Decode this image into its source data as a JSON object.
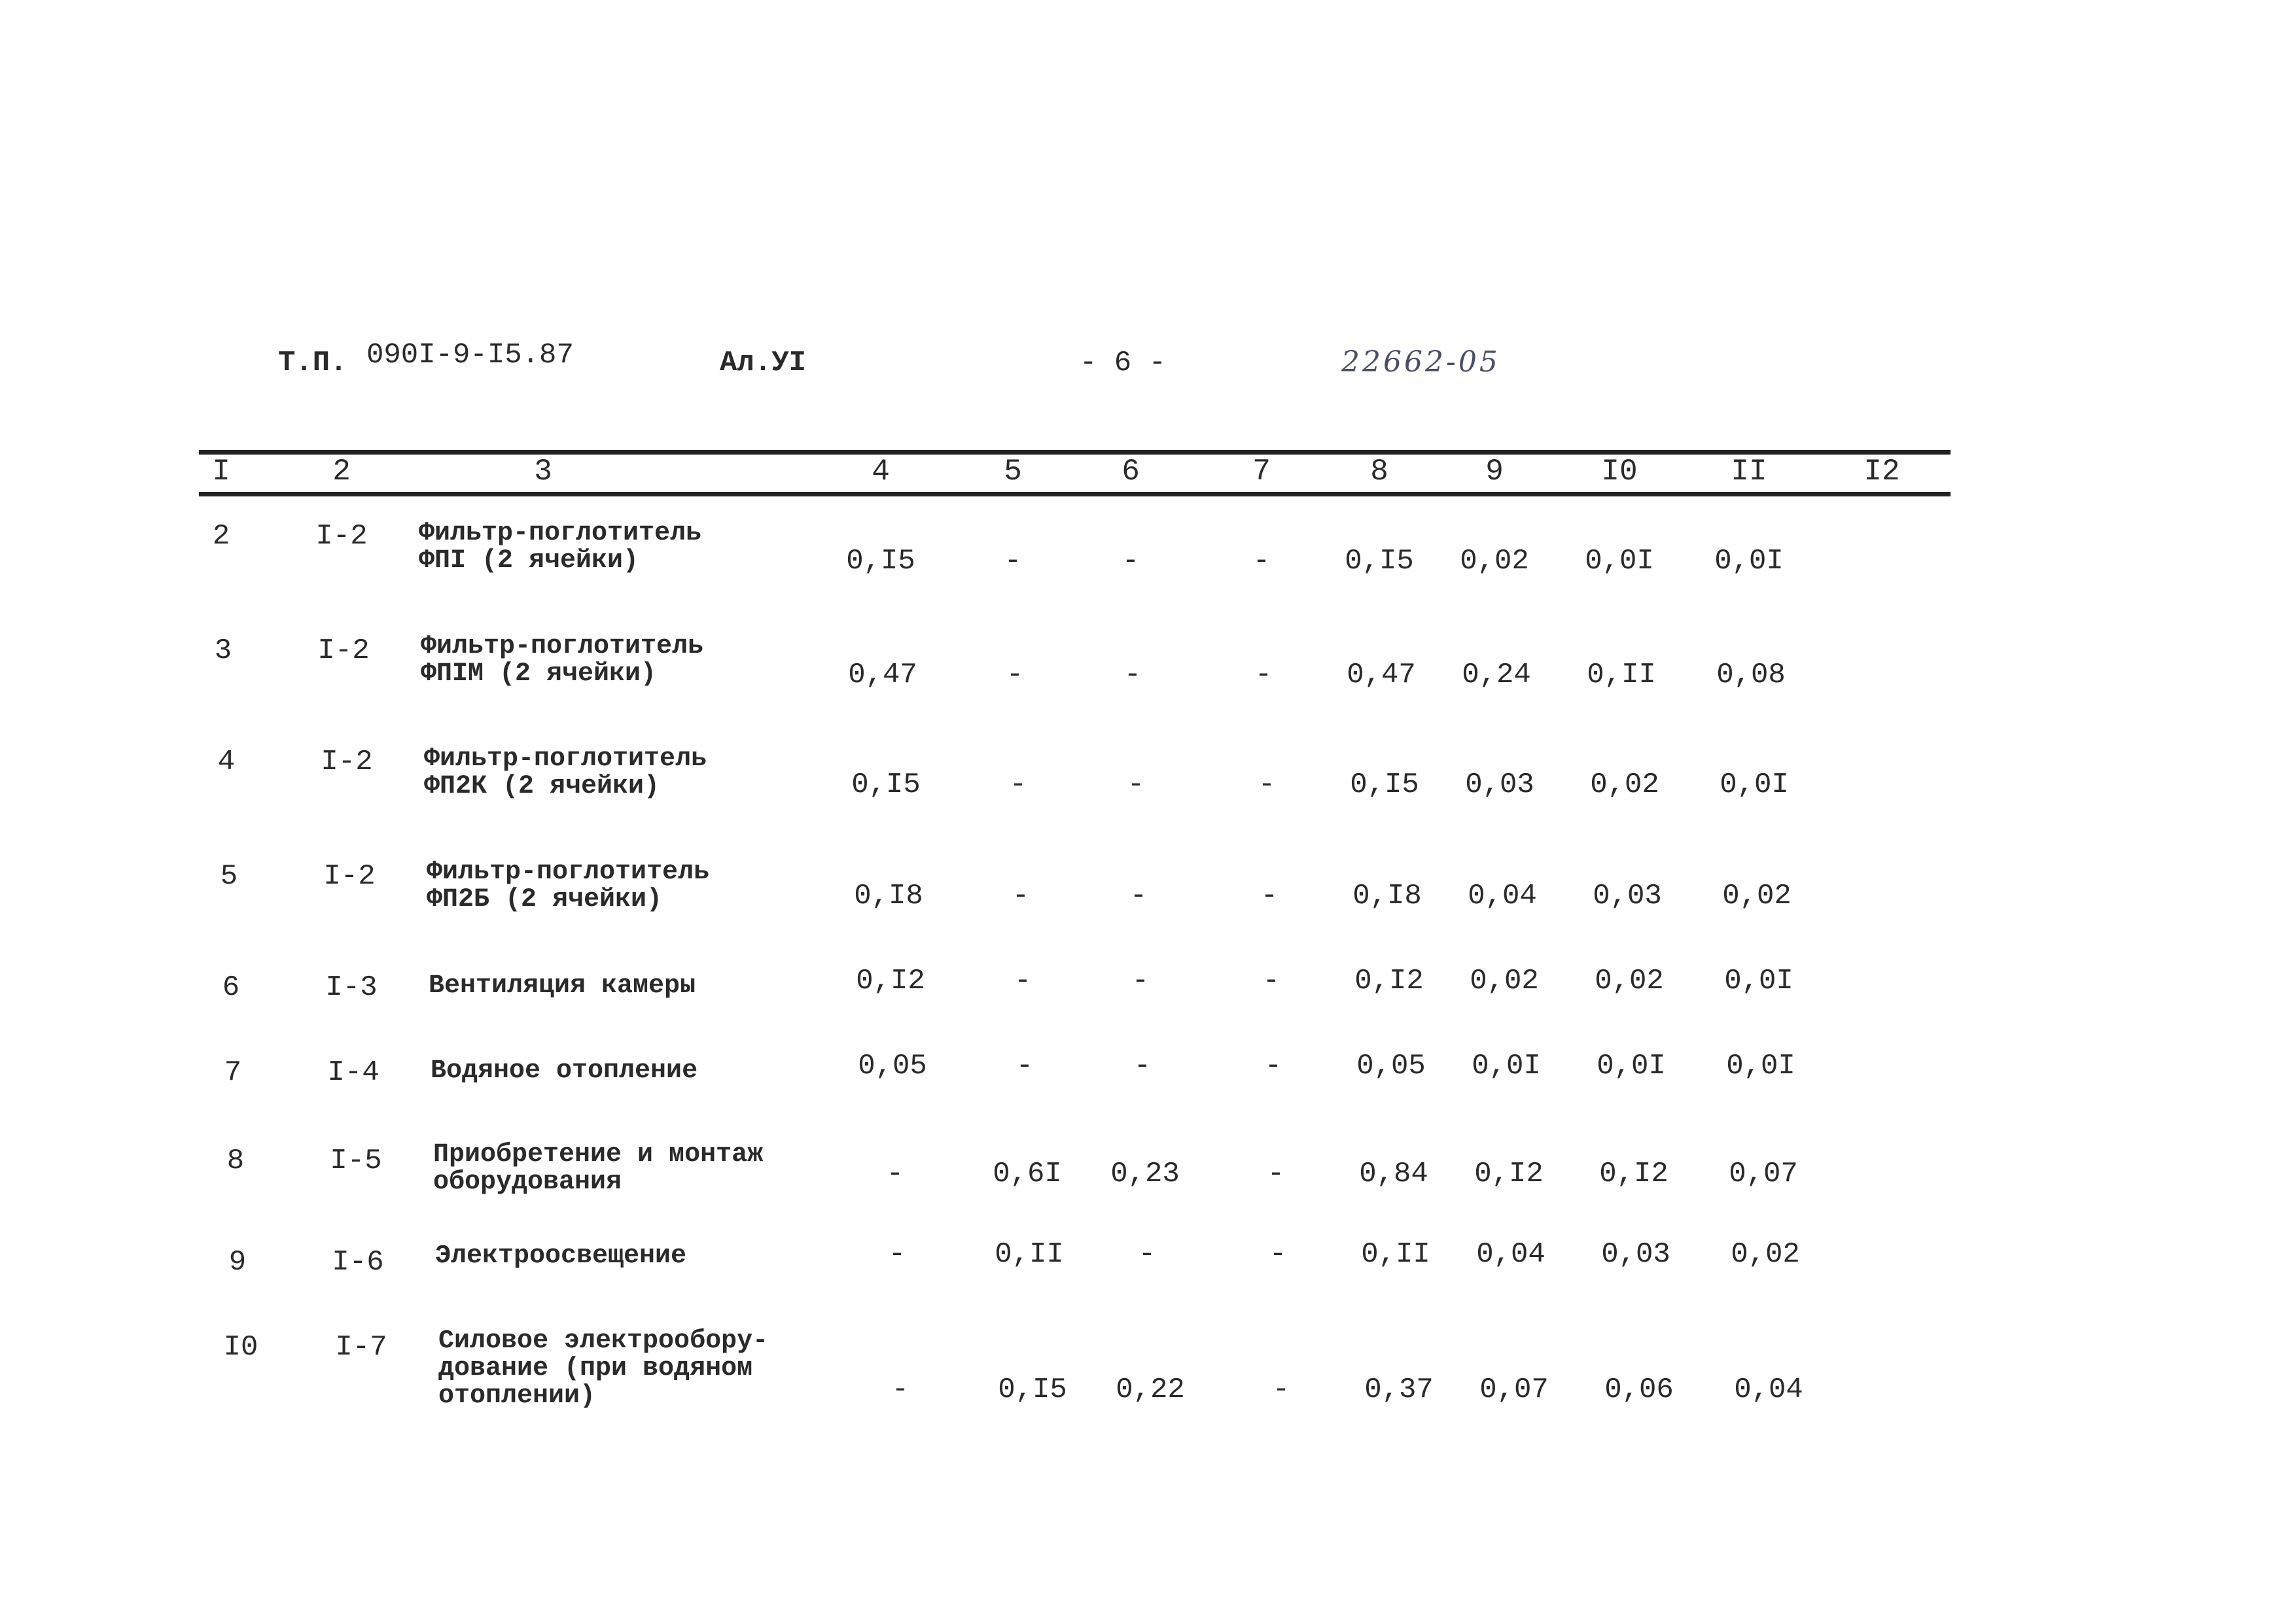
{
  "header": {
    "project_prefix": "Т.П.",
    "project_code": "090I-9-I5.87",
    "album": "Ал.УI",
    "page": "- 6 -",
    "doc_number": "22662-05"
  },
  "table": {
    "columns": [
      "I",
      "2",
      "3",
      "4",
      "5",
      "6",
      "7",
      "8",
      "9",
      "I0",
      "II",
      "I2"
    ],
    "rows": [
      {
        "n": "2",
        "ref": "I-2",
        "desc": "Фильтр-поглотитель\nФПI (2 ячейки)",
        "c4": "0,I5",
        "c5": "-",
        "c6": "-",
        "c7": "-",
        "c8": "0,I5",
        "c9": "0,02",
        "c10": "0,0I",
        "c11": "0,0I"
      },
      {
        "n": "3",
        "ref": "I-2",
        "desc": "Фильтр-поглотитель\nФПIМ (2 ячейки)",
        "c4": "0,47",
        "c5": "-",
        "c6": "-",
        "c7": "-",
        "c8": "0,47",
        "c9": "0,24",
        "c10": "0,II",
        "c11": "0,08"
      },
      {
        "n": "4",
        "ref": "I-2",
        "desc": "Фильтр-поглотитель\nФП2К (2 ячейки)",
        "c4": "0,I5",
        "c5": "-",
        "c6": "-",
        "c7": "-",
        "c8": "0,I5",
        "c9": "0,03",
        "c10": "0,02",
        "c11": "0,0I"
      },
      {
        "n": "5",
        "ref": "I-2",
        "desc": "Фильтр-поглотитель\nФП2Б (2 ячейки)",
        "c4": "0,I8",
        "c5": "-",
        "c6": "-",
        "c7": "-",
        "c8": "0,I8",
        "c9": "0,04",
        "c10": "0,03",
        "c11": "0,02"
      },
      {
        "n": "6",
        "ref": "I-3",
        "desc": "Вентиляция камеры",
        "c4": "0,I2",
        "c5": "-",
        "c6": "-",
        "c7": "-",
        "c8": "0,I2",
        "c9": "0,02",
        "c10": "0,02",
        "c11": "0,0I"
      },
      {
        "n": "7",
        "ref": "I-4",
        "desc": "Водяное отопление",
        "c4": "0,05",
        "c5": "-",
        "c6": "-",
        "c7": "-",
        "c8": "0,05",
        "c9": "0,0I",
        "c10": "0,0I",
        "c11": "0,0I"
      },
      {
        "n": "8",
        "ref": "I-5",
        "desc": "Приобретение и монтаж\nоборудования",
        "c4": "-",
        "c5": "0,6I",
        "c6": "0,23",
        "c7": "-",
        "c8": "0,84",
        "c9": "0,I2",
        "c10": "0,I2",
        "c11": "0,07"
      },
      {
        "n": "9",
        "ref": "I-6",
        "desc": "Электроосвещение",
        "c4": "-",
        "c5": "0,II",
        "c6": "-",
        "c7": "-",
        "c8": "0,II",
        "c9": "0,04",
        "c10": "0,03",
        "c11": "0,02"
      },
      {
        "n": "I0",
        "ref": "I-7",
        "desc": "Силовое электрообору-\nдование (при водяном\nотоплении)",
        "c4": "-",
        "c5": "0,I5",
        "c6": "0,22",
        "c7": "-",
        "c8": "0,37",
        "c9": "0,07",
        "c10": "0,06",
        "c11": "0,04"
      }
    ]
  }
}
